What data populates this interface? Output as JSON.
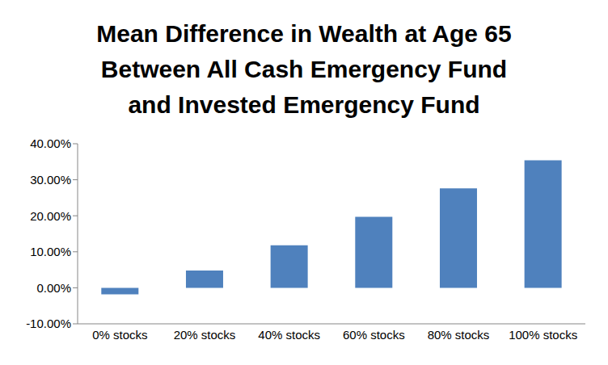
{
  "chart_data": {
    "type": "bar",
    "title": "Mean Difference in Wealth at Age 65 Between All Cash Emergency Fund and Invested Emergency Fund",
    "categories": [
      "0% stocks",
      "20% stocks",
      "40% stocks",
      "60% stocks",
      "80% stocks",
      "100% stocks"
    ],
    "values": [
      -1.8,
      4.8,
      11.8,
      19.7,
      27.6,
      35.4
    ],
    "color": "#4f81bd",
    "ylim": [
      -10,
      40
    ],
    "yticks": [
      {
        "value": -10,
        "label": "-10.00%"
      },
      {
        "value": 0,
        "label": "0.00%"
      },
      {
        "value": 10,
        "label": "10.00%"
      },
      {
        "value": 20,
        "label": "20.00%"
      },
      {
        "value": 30,
        "label": "30.00%"
      },
      {
        "value": 40,
        "label": "40.00%"
      }
    ],
    "grid": false
  }
}
